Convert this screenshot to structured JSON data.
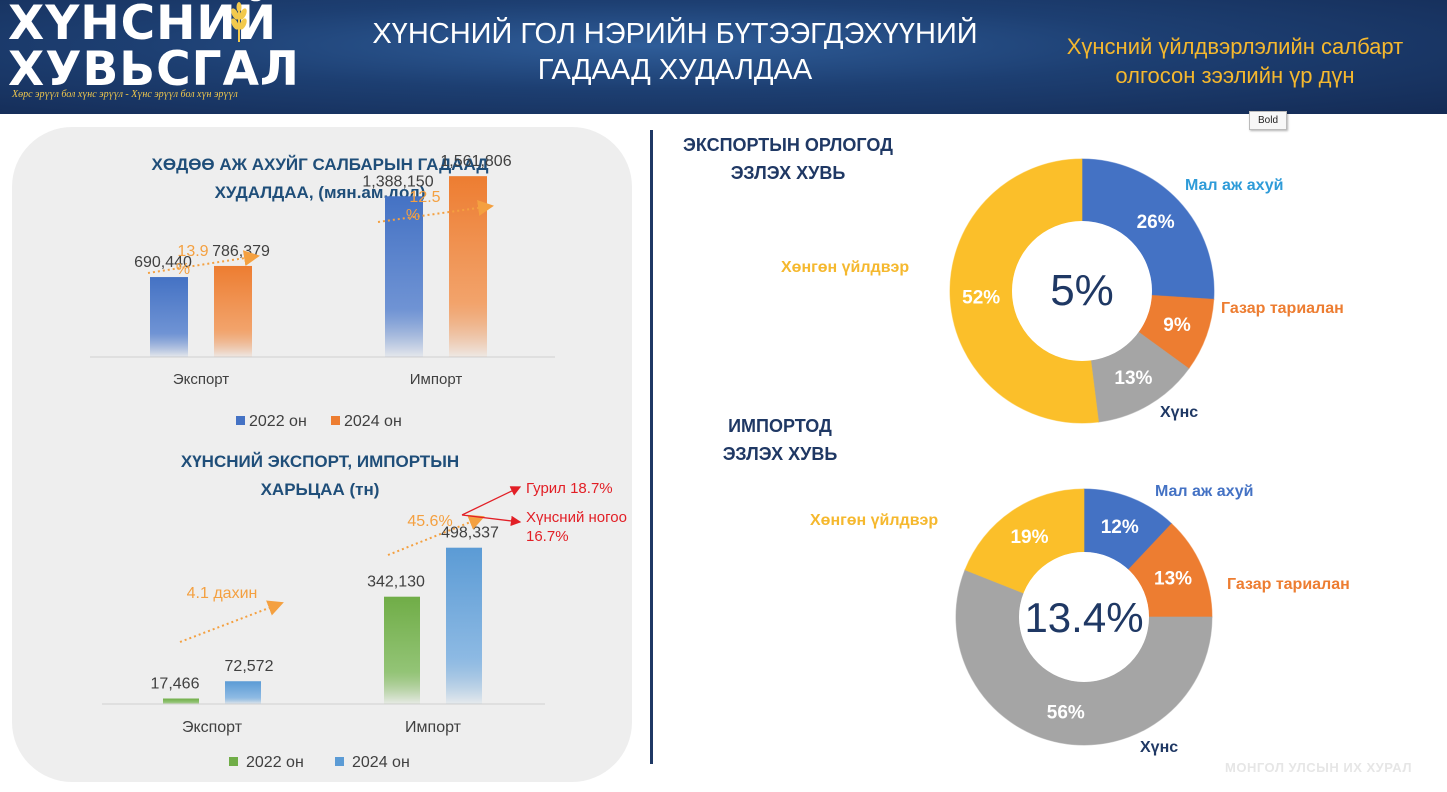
{
  "header": {
    "logo_line1": "ХҮНСНИЙ",
    "logo_line2": "ХУВЬСГАЛ",
    "slogan": "Хөрс эрүүл бол хүнс эрүүл - Хүнс эрүүл бол хүн эрүүл",
    "title_line1": "ХҮНСНИЙ ГОЛ НЭРИЙН БҮТЭЭГДЭХҮҮНИЙ",
    "title_line2": "ГАДААД ХУДАЛДАА",
    "right_line1": "Хүнсний үйлдвэрлэлийн салбарт",
    "right_line2": "олгосон зээлийн үр дүн"
  },
  "tooltip": "Bold",
  "watermark": "МОНГОЛ УЛСЫН ИХ ХУРАЛ",
  "colors": {
    "blue": "#4472c4",
    "orange": "#ed7d31",
    "gray": "#a5a5a5",
    "gold": "#fbbf2a",
    "green": "#70ad47",
    "lightblue": "#5b9bd5",
    "navy": "#1f3864",
    "arrow_orange": "#f4a040",
    "red": "#e21f26"
  },
  "chart_data": [
    {
      "id": "ag_trade",
      "type": "bar",
      "title_line1": "ХӨДӨӨ АЖ АХУЙГ САЛБАРЫН ГАДААД",
      "title_line2": "ХУДАЛДАА, (мян.ам.дол)",
      "categories": [
        "Экспорт",
        "Импорт"
      ],
      "series": [
        {
          "name": "2022 он",
          "values": [
            690440,
            1388150
          ],
          "labels": [
            "690,440",
            "1,388,150"
          ]
        },
        {
          "name": "2024 он",
          "values": [
            786379,
            1561806
          ],
          "labels": [
            "786,379",
            "1,561,806"
          ]
        }
      ],
      "growth_annotations": [
        "13.9\n%",
        "12.5\n%"
      ],
      "ylim": [
        0,
        1900000
      ],
      "legend": "bottom"
    },
    {
      "id": "food_trade",
      "type": "bar",
      "title_line1": "ХҮНСНИЙ ЭКСПОРТ, ИМПОРТЫН",
      "title_line2": "ХАРЬЦАА (тн)",
      "categories": [
        "Экспорт",
        "Импорт"
      ],
      "series": [
        {
          "name": "2022 он",
          "values": [
            17466,
            342130
          ],
          "labels": [
            "17,466",
            "342,130"
          ]
        },
        {
          "name": "2024 он",
          "values": [
            72572,
            498337
          ],
          "labels": [
            "72,572",
            "498,337"
          ]
        }
      ],
      "growth_annotations": [
        "4.1 дахин",
        "45.6%"
      ],
      "callouts": [
        "Гурил 18.7%",
        "Хүнсний ногоо",
        "16.7%"
      ],
      "ylim": [
        0,
        660000
      ],
      "legend": "bottom"
    },
    {
      "id": "export_share",
      "type": "pie",
      "title_line1": "ЭКСПОРТЫН ОРЛОГОД",
      "title_line2": "ЭЗЛЭХ ХУВЬ",
      "center_label": "5%",
      "slices": [
        {
          "name": "Мал аж ахуй",
          "value": 26,
          "label": "26%"
        },
        {
          "name": "Газар тариалан",
          "value": 9,
          "label": "9%"
        },
        {
          "name": "Хүнс",
          "value": 13,
          "label": "13%"
        },
        {
          "name": "Хөнгөн үйлдвэр",
          "value": 52,
          "label": "52%"
        }
      ]
    },
    {
      "id": "import_share",
      "type": "pie",
      "title_line1": "ИМПОРТОД",
      "title_line2": "ЭЗЛЭХ ХУВЬ",
      "center_label": "13.4%",
      "slices": [
        {
          "name": "Мал аж ахуй",
          "value": 12,
          "label": "12%"
        },
        {
          "name": "Газар тариалан",
          "value": 13,
          "label": "13%"
        },
        {
          "name": "Хүнс",
          "value": 56,
          "label": "56%"
        },
        {
          "name": "Хөнгөн үйлдвэр",
          "value": 19,
          "label": "19%"
        }
      ]
    }
  ]
}
